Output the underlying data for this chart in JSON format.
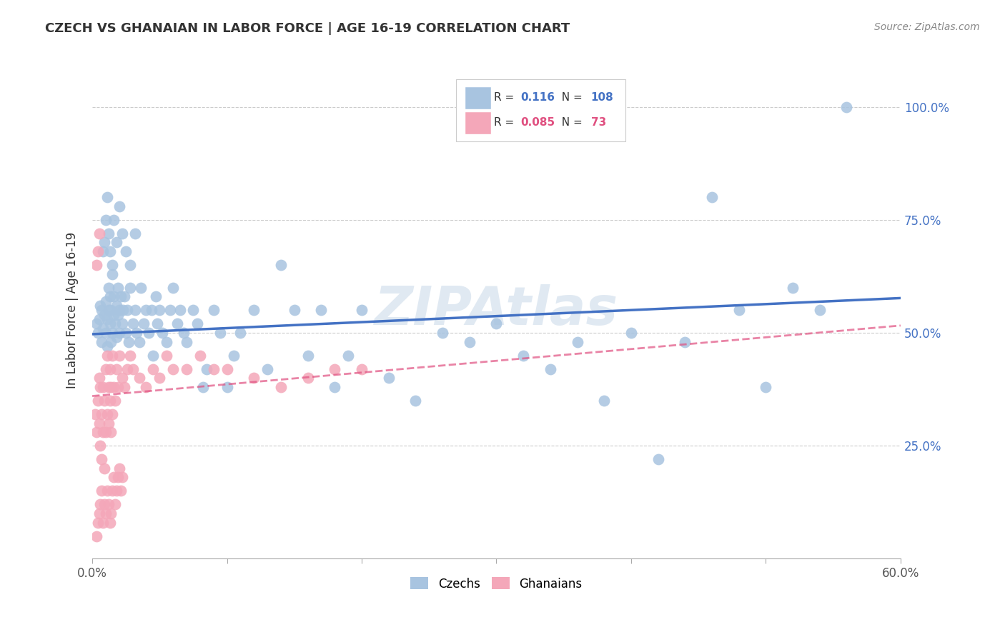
{
  "title": "CZECH VS GHANAIAN IN LABOR FORCE | AGE 16-19 CORRELATION CHART",
  "source": "Source: ZipAtlas.com",
  "ylabel": "In Labor Force | Age 16-19",
  "xlim": [
    0.0,
    0.6
  ],
  "ylim": [
    0.0,
    1.1
  ],
  "xtick_labels_ends": [
    "0.0%",
    "60.0%"
  ],
  "xtick_values_ends": [
    0.0,
    0.6
  ],
  "ytick_labels": [
    "25.0%",
    "50.0%",
    "75.0%",
    "100.0%"
  ],
  "ytick_values": [
    0.25,
    0.5,
    0.75,
    1.0
  ],
  "czech_color": "#a8c4e0",
  "ghanaian_color": "#f4a7b9",
  "czech_line_color": "#4472c4",
  "ghanaian_line_color": "#e05080",
  "watermark": "ZIPAtlas",
  "legend_R_czech": "0.116",
  "legend_N_czech": "108",
  "legend_R_ghanaian": "0.085",
  "legend_N_ghanaian": "73",
  "czech_x": [
    0.003,
    0.004,
    0.005,
    0.006,
    0.007,
    0.007,
    0.008,
    0.009,
    0.01,
    0.01,
    0.011,
    0.011,
    0.012,
    0.012,
    0.013,
    0.013,
    0.014,
    0.014,
    0.015,
    0.015,
    0.016,
    0.016,
    0.017,
    0.018,
    0.018,
    0.019,
    0.019,
    0.02,
    0.02,
    0.021,
    0.022,
    0.023,
    0.024,
    0.025,
    0.026,
    0.027,
    0.028,
    0.03,
    0.032,
    0.033,
    0.035,
    0.036,
    0.038,
    0.04,
    0.042,
    0.044,
    0.045,
    0.047,
    0.048,
    0.05,
    0.052,
    0.055,
    0.058,
    0.06,
    0.063,
    0.065,
    0.068,
    0.07,
    0.075,
    0.078,
    0.082,
    0.085,
    0.09,
    0.095,
    0.1,
    0.105,
    0.11,
    0.12,
    0.13,
    0.14,
    0.15,
    0.16,
    0.17,
    0.18,
    0.19,
    0.2,
    0.22,
    0.24,
    0.26,
    0.28,
    0.3,
    0.32,
    0.34,
    0.36,
    0.38,
    0.4,
    0.42,
    0.44,
    0.46,
    0.48,
    0.5,
    0.52,
    0.54,
    0.56,
    0.008,
    0.009,
    0.01,
    0.011,
    0.012,
    0.013,
    0.015,
    0.016,
    0.018,
    0.02,
    0.022,
    0.025,
    0.028,
    0.032
  ],
  "czech_y": [
    0.52,
    0.5,
    0.53,
    0.56,
    0.48,
    0.55,
    0.51,
    0.54,
    0.5,
    0.57,
    0.53,
    0.47,
    0.55,
    0.6,
    0.52,
    0.58,
    0.48,
    0.55,
    0.5,
    0.63,
    0.54,
    0.58,
    0.52,
    0.56,
    0.49,
    0.54,
    0.6,
    0.5,
    0.55,
    0.58,
    0.52,
    0.55,
    0.58,
    0.5,
    0.55,
    0.48,
    0.6,
    0.52,
    0.55,
    0.5,
    0.48,
    0.6,
    0.52,
    0.55,
    0.5,
    0.55,
    0.45,
    0.58,
    0.52,
    0.55,
    0.5,
    0.48,
    0.55,
    0.6,
    0.52,
    0.55,
    0.5,
    0.48,
    0.55,
    0.52,
    0.38,
    0.42,
    0.55,
    0.5,
    0.38,
    0.45,
    0.5,
    0.55,
    0.42,
    0.65,
    0.55,
    0.45,
    0.55,
    0.38,
    0.45,
    0.55,
    0.4,
    0.35,
    0.5,
    0.48,
    0.52,
    0.45,
    0.42,
    0.48,
    0.35,
    0.5,
    0.22,
    0.48,
    0.8,
    0.55,
    0.38,
    0.6,
    0.55,
    1.0,
    0.68,
    0.7,
    0.75,
    0.8,
    0.72,
    0.68,
    0.65,
    0.75,
    0.7,
    0.78,
    0.72,
    0.68,
    0.65,
    0.72
  ],
  "ghanaian_x": [
    0.002,
    0.003,
    0.004,
    0.005,
    0.005,
    0.006,
    0.006,
    0.007,
    0.007,
    0.008,
    0.008,
    0.009,
    0.009,
    0.01,
    0.01,
    0.011,
    0.011,
    0.012,
    0.012,
    0.013,
    0.013,
    0.014,
    0.014,
    0.015,
    0.015,
    0.016,
    0.017,
    0.018,
    0.019,
    0.02,
    0.022,
    0.024,
    0.026,
    0.028,
    0.03,
    0.035,
    0.04,
    0.045,
    0.05,
    0.055,
    0.06,
    0.07,
    0.08,
    0.09,
    0.1,
    0.12,
    0.14,
    0.16,
    0.18,
    0.2,
    0.003,
    0.004,
    0.005,
    0.006,
    0.007,
    0.008,
    0.009,
    0.01,
    0.011,
    0.012,
    0.013,
    0.014,
    0.015,
    0.016,
    0.017,
    0.018,
    0.019,
    0.02,
    0.021,
    0.022,
    0.003,
    0.004,
    0.005
  ],
  "ghanaian_y": [
    0.32,
    0.28,
    0.35,
    0.3,
    0.4,
    0.25,
    0.38,
    0.22,
    0.32,
    0.28,
    0.38,
    0.2,
    0.35,
    0.28,
    0.42,
    0.32,
    0.45,
    0.38,
    0.3,
    0.42,
    0.35,
    0.28,
    0.38,
    0.32,
    0.45,
    0.38,
    0.35,
    0.42,
    0.38,
    0.45,
    0.4,
    0.38,
    0.42,
    0.45,
    0.42,
    0.4,
    0.38,
    0.42,
    0.4,
    0.45,
    0.42,
    0.42,
    0.45,
    0.42,
    0.42,
    0.4,
    0.38,
    0.4,
    0.42,
    0.42,
    0.05,
    0.08,
    0.1,
    0.12,
    0.15,
    0.08,
    0.12,
    0.1,
    0.15,
    0.12,
    0.08,
    0.1,
    0.15,
    0.18,
    0.12,
    0.15,
    0.18,
    0.2,
    0.15,
    0.18,
    0.65,
    0.68,
    0.72
  ]
}
